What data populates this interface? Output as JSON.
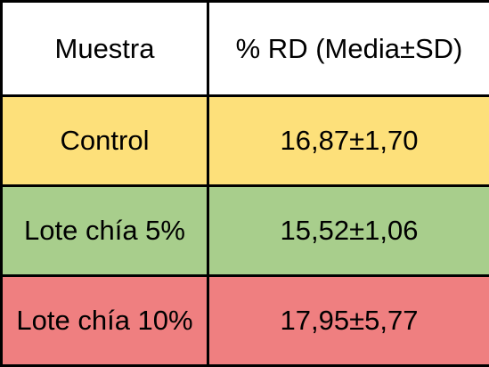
{
  "table": {
    "headers": [
      "Muestra",
      "% RD (Media±SD)"
    ],
    "header_color": "#ffffff",
    "rows": [
      {
        "sample": "Control",
        "value": "16,87±1,70",
        "color": "#fde07a"
      },
      {
        "sample": "Lote chía 5%",
        "value": "15,52±1,06",
        "color": "#a8ce8c"
      },
      {
        "sample": "Lote chía 10%",
        "value": "17,95±5,77",
        "color": "#ef7f80"
      }
    ]
  }
}
